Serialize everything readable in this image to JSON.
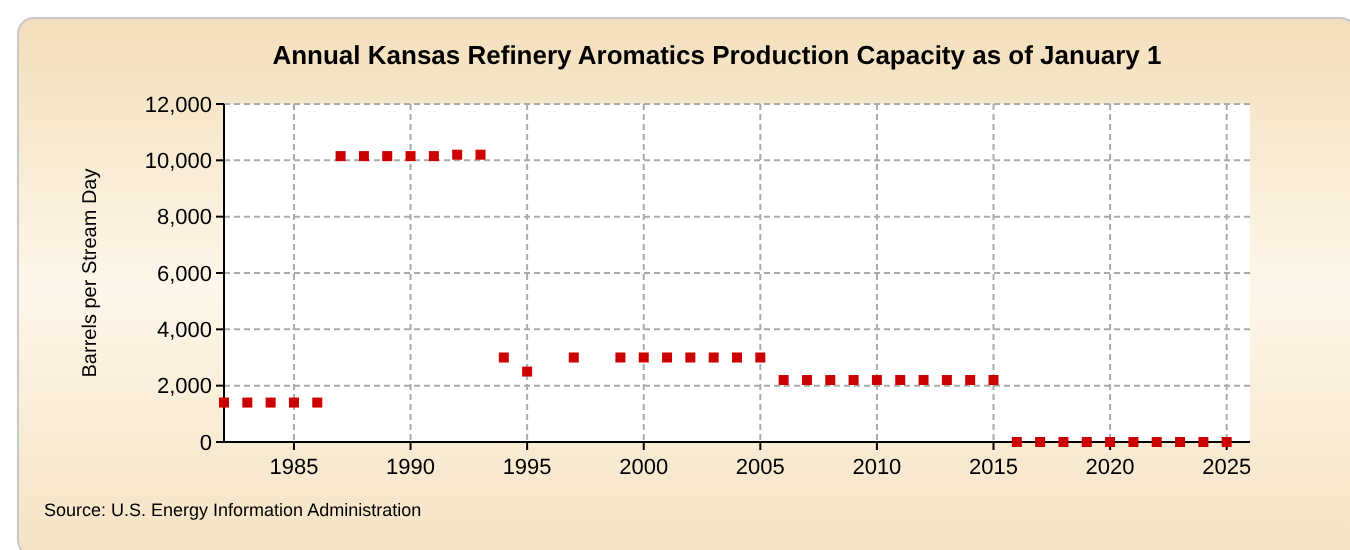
{
  "chart_data": {
    "type": "scatter",
    "title": "Annual Kansas Refinery Aromatics Production Capacity as of January 1",
    "ylabel": "Barrels per Stream Day",
    "x": [
      1982,
      1983,
      1984,
      1985,
      1986,
      1987,
      1988,
      1989,
      1990,
      1991,
      1992,
      1993,
      1994,
      1995,
      1997,
      1999,
      2000,
      2001,
      2002,
      2003,
      2004,
      2005,
      2006,
      2007,
      2008,
      2009,
      2010,
      2011,
      2012,
      2013,
      2014,
      2015,
      2016,
      2017,
      2018,
      2019,
      2020,
      2021,
      2022,
      2023,
      2024,
      2025
    ],
    "series": [
      {
        "color": "#cc0000",
        "values": [
          1400,
          1400,
          1400,
          1400,
          1400,
          10150,
          10150,
          10150,
          10150,
          10150,
          10200,
          10200,
          3000,
          2500,
          3000,
          3000,
          3000,
          3000,
          3000,
          3000,
          3000,
          3000,
          2200,
          2200,
          2200,
          2200,
          2200,
          2200,
          2200,
          2200,
          2200,
          2200,
          0,
          0,
          0,
          0,
          0,
          0,
          0,
          0,
          0,
          0
        ]
      }
    ],
    "xlim": [
      1982,
      2026
    ],
    "xticks": [
      1985,
      1990,
      1995,
      2000,
      2005,
      2010,
      2015,
      2020,
      2025
    ],
    "ylim": [
      0,
      12000
    ],
    "yticks": [
      {
        "value": 0,
        "label": "0"
      },
      {
        "value": 2000,
        "label": "2,000"
      },
      {
        "value": 4000,
        "label": "4,000"
      },
      {
        "value": 6000,
        "label": "6,000"
      },
      {
        "value": 8000,
        "label": "8,000"
      },
      {
        "value": 10000,
        "label": "10,000"
      },
      {
        "value": 12000,
        "label": "12,000"
      }
    ],
    "grid": true,
    "marker": "square",
    "annotations": [
      "Source: U.S. Energy Information Administration"
    ]
  }
}
